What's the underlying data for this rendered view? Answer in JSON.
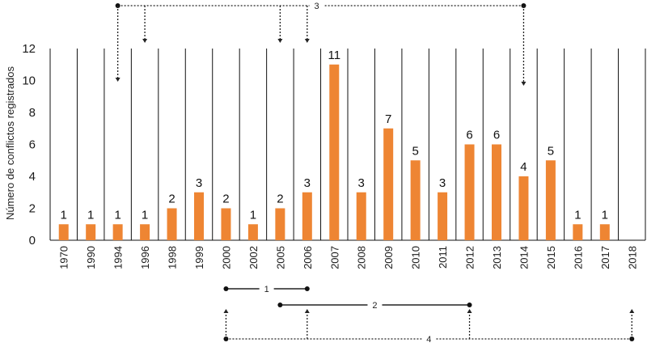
{
  "chart_data": {
    "type": "bar",
    "ylabel": "Número de conflictos registrados",
    "xlabel": "",
    "ylim": [
      0,
      12
    ],
    "yticks": [
      "0",
      "2",
      "4",
      "6",
      "8",
      "10",
      "12"
    ],
    "categories": [
      "1970",
      "1990",
      "1994",
      "1996",
      "1998",
      "1999",
      "2000",
      "2002",
      "2005",
      "2006",
      "2007",
      "2008",
      "2009",
      "2010",
      "2011",
      "2012",
      "2013",
      "2014",
      "2015",
      "2016",
      "2017",
      "2018"
    ],
    "values": [
      1,
      1,
      1,
      1,
      2,
      3,
      2,
      1,
      2,
      3,
      11,
      3,
      7,
      5,
      3,
      6,
      6,
      4,
      5,
      1,
      1,
      0
    ],
    "data_labels": [
      "1",
      "1",
      "1",
      "1",
      "2",
      "3",
      "2",
      "1",
      "2",
      "3",
      "11",
      "3",
      "7",
      "5",
      "3",
      "6",
      "6",
      "4",
      "5",
      "1",
      "1",
      ""
    ],
    "bar_color": "#ee8533",
    "grid": "vertical separators between categories",
    "annotations": [
      {
        "label": "3",
        "style": "dotted",
        "position": "top",
        "points_to": [
          "1994",
          "1996",
          "2005",
          "2006",
          "2014"
        ]
      },
      {
        "label": "1",
        "style": "solid",
        "position": "bottom",
        "spans": [
          "2000",
          "2006"
        ]
      },
      {
        "label": "2",
        "style": "solid",
        "position": "bottom",
        "spans": [
          "2005",
          "2012"
        ]
      },
      {
        "label": "4",
        "style": "dotted",
        "position": "bottom",
        "points_to": [
          "2000",
          "2006",
          "2012",
          "2018"
        ]
      }
    ]
  }
}
